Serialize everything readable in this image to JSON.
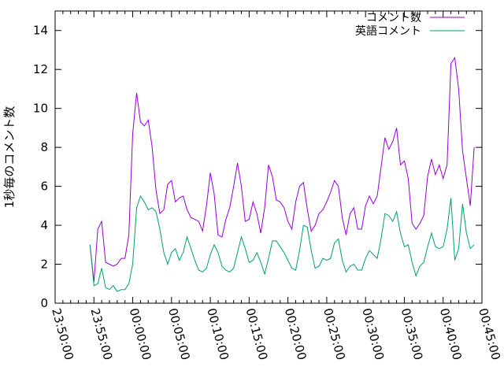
{
  "chart_data": {
    "type": "line",
    "title": "",
    "xlabel": "",
    "ylabel": "1秒毎のコメント数",
    "ylim": [
      0,
      15
    ],
    "yticks": [
      0,
      2,
      4,
      6,
      8,
      10,
      12,
      14
    ],
    "xlim": [
      "23:50:00",
      "00:45:00"
    ],
    "xticks": [
      "23:50:00",
      "23:55:00",
      "00:00:00",
      "00:05:00",
      "00:10:00",
      "00:15:00",
      "00:20:00",
      "00:25:00",
      "00:30:00",
      "00:35:00",
      "00:40:00",
      "00:45:00"
    ],
    "legend_position": "top-right",
    "grid": false,
    "series": [
      {
        "name": "コメント数",
        "color": "#9400d3",
        "points": [
          [
            "23:54:30",
            3.0
          ],
          [
            "23:55:00",
            1.1
          ],
          [
            "23:55:30",
            3.8
          ],
          [
            "23:56:00",
            4.2
          ],
          [
            "23:56:30",
            2.1
          ],
          [
            "23:57:00",
            2.0
          ],
          [
            "23:57:30",
            1.9
          ],
          [
            "23:58:00",
            2.0
          ],
          [
            "23:58:30",
            2.3
          ],
          [
            "23:59:00",
            2.3
          ],
          [
            "23:59:30",
            3.5
          ],
          [
            "00:00:00",
            8.7
          ],
          [
            "00:00:30",
            10.8
          ],
          [
            "00:01:00",
            9.3
          ],
          [
            "00:01:30",
            9.1
          ],
          [
            "00:02:00",
            9.4
          ],
          [
            "00:02:30",
            8.0
          ],
          [
            "00:03:00",
            5.8
          ],
          [
            "00:03:30",
            4.6
          ],
          [
            "00:04:00",
            4.8
          ],
          [
            "00:04:30",
            6.1
          ],
          [
            "00:05:00",
            6.3
          ],
          [
            "00:05:30",
            5.2
          ],
          [
            "00:06:00",
            5.4
          ],
          [
            "00:06:30",
            5.5
          ],
          [
            "00:07:00",
            4.8
          ],
          [
            "00:07:30",
            4.4
          ],
          [
            "00:08:00",
            4.3
          ],
          [
            "00:08:30",
            4.2
          ],
          [
            "00:09:00",
            3.7
          ],
          [
            "00:09:30",
            5.0
          ],
          [
            "00:10:00",
            6.7
          ],
          [
            "00:10:30",
            5.6
          ],
          [
            "00:11:00",
            3.5
          ],
          [
            "00:11:30",
            3.4
          ],
          [
            "00:12:00",
            4.3
          ],
          [
            "00:12:30",
            4.9
          ],
          [
            "00:13:00",
            6.0
          ],
          [
            "00:13:30",
            7.2
          ],
          [
            "00:14:00",
            6.0
          ],
          [
            "00:14:30",
            4.2
          ],
          [
            "00:15:00",
            4.3
          ],
          [
            "00:15:30",
            5.2
          ],
          [
            "00:16:00",
            4.6
          ],
          [
            "00:16:30",
            3.6
          ],
          [
            "00:17:00",
            4.9
          ],
          [
            "00:17:30",
            7.1
          ],
          [
            "00:18:00",
            6.5
          ],
          [
            "00:18:30",
            5.3
          ],
          [
            "00:19:00",
            5.2
          ],
          [
            "00:19:30",
            4.9
          ],
          [
            "00:20:00",
            4.2
          ],
          [
            "00:20:30",
            3.8
          ],
          [
            "00:21:00",
            5.2
          ],
          [
            "00:21:30",
            6.0
          ],
          [
            "00:22:00",
            6.2
          ],
          [
            "00:22:30",
            4.8
          ],
          [
            "00:23:00",
            3.7
          ],
          [
            "00:23:30",
            4.0
          ],
          [
            "00:24:00",
            4.6
          ],
          [
            "00:24:30",
            4.8
          ],
          [
            "00:25:00",
            5.2
          ],
          [
            "00:25:30",
            5.7
          ],
          [
            "00:26:00",
            6.3
          ],
          [
            "00:26:30",
            6.0
          ],
          [
            "00:27:00",
            4.4
          ],
          [
            "00:27:30",
            3.5
          ],
          [
            "00:28:00",
            4.6
          ],
          [
            "00:28:30",
            4.9
          ],
          [
            "00:29:00",
            3.8
          ],
          [
            "00:29:30",
            3.8
          ],
          [
            "00:30:00",
            5.0
          ],
          [
            "00:30:30",
            5.5
          ],
          [
            "00:31:00",
            5.1
          ],
          [
            "00:31:30",
            5.5
          ],
          [
            "00:32:00",
            7.0
          ],
          [
            "00:32:30",
            8.5
          ],
          [
            "00:33:00",
            7.9
          ],
          [
            "00:33:30",
            8.3
          ],
          [
            "00:34:00",
            9.0
          ],
          [
            "00:34:30",
            7.1
          ],
          [
            "00:35:00",
            7.3
          ],
          [
            "00:35:30",
            6.4
          ],
          [
            "00:36:00",
            4.1
          ],
          [
            "00:36:30",
            3.8
          ],
          [
            "00:37:00",
            4.1
          ],
          [
            "00:37:30",
            4.5
          ],
          [
            "00:38:00",
            6.5
          ],
          [
            "00:38:30",
            7.4
          ],
          [
            "00:39:00",
            6.6
          ],
          [
            "00:39:30",
            7.1
          ],
          [
            "00:40:00",
            6.4
          ],
          [
            "00:40:30",
            7.1
          ],
          [
            "00:41:00",
            12.3
          ],
          [
            "00:41:30",
            12.6
          ],
          [
            "00:42:00",
            11.0
          ],
          [
            "00:42:30",
            7.8
          ],
          [
            "00:43:00",
            6.4
          ],
          [
            "00:43:30",
            5.0
          ],
          [
            "00:44:00",
            8.0
          ]
        ]
      },
      {
        "name": "英語コメント",
        "color": "#009e73",
        "points": [
          [
            "23:54:30",
            3.0
          ],
          [
            "23:55:00",
            0.9
          ],
          [
            "23:55:30",
            1.0
          ],
          [
            "23:56:00",
            1.8
          ],
          [
            "23:56:30",
            0.8
          ],
          [
            "23:57:00",
            0.7
          ],
          [
            "23:57:30",
            0.9
          ],
          [
            "23:58:00",
            0.6
          ],
          [
            "23:58:30",
            0.7
          ],
          [
            "23:59:00",
            0.7
          ],
          [
            "23:59:30",
            1.0
          ],
          [
            "00:00:00",
            2.0
          ],
          [
            "00:00:30",
            4.9
          ],
          [
            "00:01:00",
            5.5
          ],
          [
            "00:01:30",
            5.2
          ],
          [
            "00:02:00",
            4.8
          ],
          [
            "00:02:30",
            4.9
          ],
          [
            "00:03:00",
            4.7
          ],
          [
            "00:03:30",
            3.8
          ],
          [
            "00:04:00",
            2.6
          ],
          [
            "00:04:30",
            2.0
          ],
          [
            "00:05:00",
            2.6
          ],
          [
            "00:05:30",
            2.8
          ],
          [
            "00:06:00",
            2.2
          ],
          [
            "00:06:30",
            2.6
          ],
          [
            "00:07:00",
            3.4
          ],
          [
            "00:07:30",
            2.8
          ],
          [
            "00:08:00",
            2.2
          ],
          [
            "00:08:30",
            1.7
          ],
          [
            "00:09:00",
            1.6
          ],
          [
            "00:09:30",
            1.8
          ],
          [
            "00:10:00",
            2.5
          ],
          [
            "00:10:30",
            3.0
          ],
          [
            "00:11:00",
            2.6
          ],
          [
            "00:11:30",
            1.9
          ],
          [
            "00:12:00",
            1.7
          ],
          [
            "00:12:30",
            1.6
          ],
          [
            "00:13:00",
            1.8
          ],
          [
            "00:13:30",
            2.6
          ],
          [
            "00:14:00",
            3.4
          ],
          [
            "00:14:30",
            2.8
          ],
          [
            "00:15:00",
            2.1
          ],
          [
            "00:15:30",
            2.2
          ],
          [
            "00:16:00",
            2.6
          ],
          [
            "00:16:30",
            2.1
          ],
          [
            "00:17:00",
            1.5
          ],
          [
            "00:17:30",
            2.3
          ],
          [
            "00:18:00",
            3.2
          ],
          [
            "00:18:30",
            3.2
          ],
          [
            "00:19:00",
            2.9
          ],
          [
            "00:19:30",
            2.6
          ],
          [
            "00:20:00",
            2.2
          ],
          [
            "00:20:30",
            1.8
          ],
          [
            "00:21:00",
            1.7
          ],
          [
            "00:21:30",
            2.7
          ],
          [
            "00:22:00",
            4.0
          ],
          [
            "00:22:30",
            3.9
          ],
          [
            "00:23:00",
            2.7
          ],
          [
            "00:23:30",
            1.8
          ],
          [
            "00:24:00",
            1.9
          ],
          [
            "00:24:30",
            2.3
          ],
          [
            "00:25:00",
            2.2
          ],
          [
            "00:25:30",
            2.3
          ],
          [
            "00:26:00",
            3.1
          ],
          [
            "00:26:30",
            3.3
          ],
          [
            "00:27:00",
            2.2
          ],
          [
            "00:27:30",
            1.6
          ],
          [
            "00:28:00",
            1.9
          ],
          [
            "00:28:30",
            2.0
          ],
          [
            "00:29:00",
            1.7
          ],
          [
            "00:29:30",
            1.7
          ],
          [
            "00:30:00",
            2.3
          ],
          [
            "00:30:30",
            2.7
          ],
          [
            "00:31:00",
            2.5
          ],
          [
            "00:31:30",
            2.3
          ],
          [
            "00:32:00",
            3.3
          ],
          [
            "00:32:30",
            4.6
          ],
          [
            "00:33:00",
            4.5
          ],
          [
            "00:33:30",
            4.2
          ],
          [
            "00:34:00",
            4.7
          ],
          [
            "00:34:30",
            3.6
          ],
          [
            "00:35:00",
            2.9
          ],
          [
            "00:35:30",
            3.0
          ],
          [
            "00:36:00",
            2.1
          ],
          [
            "00:36:30",
            1.4
          ],
          [
            "00:37:00",
            1.9
          ],
          [
            "00:37:30",
            2.1
          ],
          [
            "00:38:00",
            2.9
          ],
          [
            "00:38:30",
            3.6
          ],
          [
            "00:39:00",
            2.9
          ],
          [
            "00:39:30",
            2.8
          ],
          [
            "00:40:00",
            2.9
          ],
          [
            "00:40:30",
            3.8
          ],
          [
            "00:41:00",
            5.4
          ],
          [
            "00:41:30",
            2.2
          ],
          [
            "00:42:00",
            2.8
          ],
          [
            "00:42:30",
            5.1
          ],
          [
            "00:43:00",
            3.6
          ],
          [
            "00:43:30",
            2.8
          ],
          [
            "00:44:00",
            3.0
          ]
        ]
      }
    ]
  }
}
